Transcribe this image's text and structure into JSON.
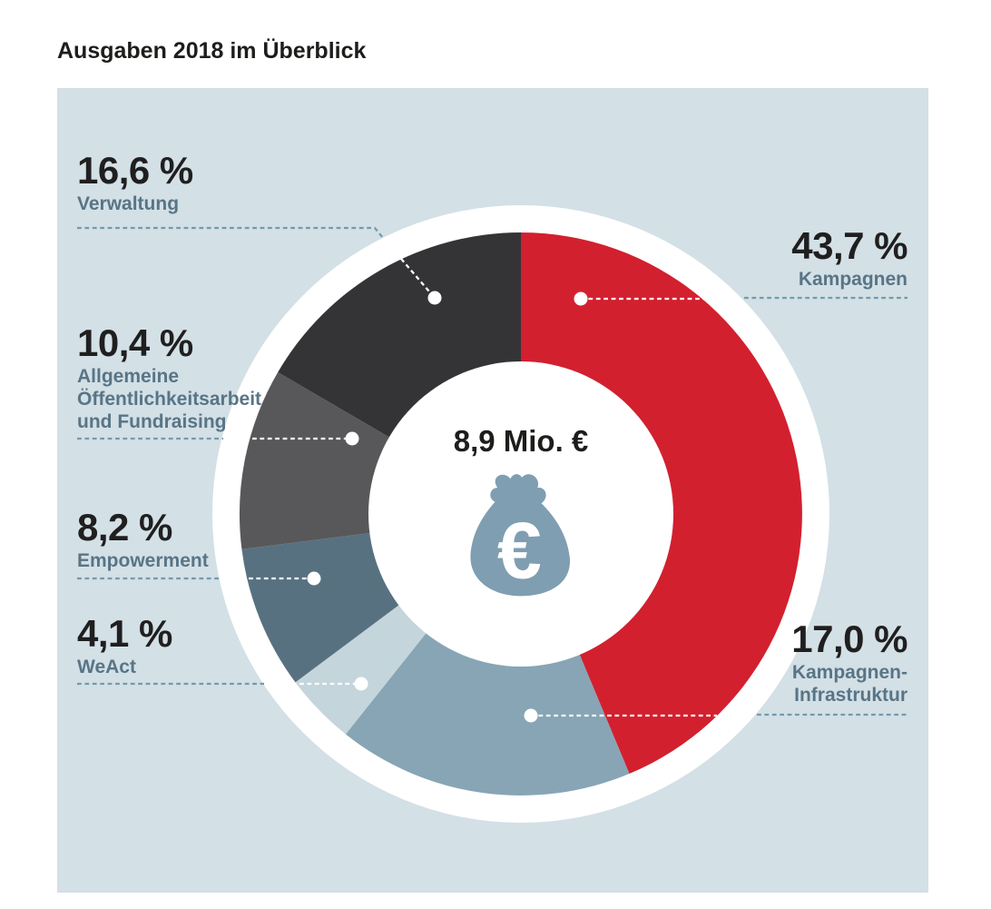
{
  "title": "Ausgaben 2018 im Überblick",
  "center": {
    "total_label": "8,9 Mio. €",
    "icon": "money-bag-euro-icon",
    "euro_glyph": "€"
  },
  "colors": {
    "page_background": "#ffffff",
    "panel_background": "#d3e0e6",
    "ring_white": "#ffffff",
    "leader_on_background": "#749aab",
    "leader_on_segment": "#ffffff",
    "dot": "#ffffff",
    "percent_text": "#201f1f",
    "sublabel_text": "#587586",
    "title_text": "#1d1d1b",
    "money_bag": "#7f9eb1"
  },
  "chart_data": {
    "type": "pie",
    "donut": true,
    "title": "Ausgaben 2018 im Überblick",
    "center_total": "8,9 Mio. €",
    "units": "percent",
    "start_angle": "12-o'clock, clockwise",
    "categories": [
      "Kampagnen",
      "Kampagnen-Infrastruktur",
      "WeAct",
      "Empowerment",
      "Allgemeine Öffentlichkeitsarbeit und Fundraising",
      "Verwaltung"
    ],
    "values": [
      43.7,
      17.0,
      4.1,
      8.2,
      10.4,
      16.6
    ],
    "segments": [
      {
        "key": "kampagnen",
        "label": "Kampagnen",
        "value": 43.7,
        "display": "43,7 %",
        "color": "#d2202f"
      },
      {
        "key": "infrastruktur",
        "label": "Kampagnen-Infrastruktur",
        "value": 17.0,
        "display": "17,0 %",
        "color": "#87a5b5"
      },
      {
        "key": "weact",
        "label": "WeAct",
        "value": 4.1,
        "display": "4,1 %",
        "color": "#c4d5dc"
      },
      {
        "key": "empowerment",
        "label": "Empowerment",
        "value": 8.2,
        "display": "8,2 %",
        "color": "#587181"
      },
      {
        "key": "oeffentlichkeitsarbeit",
        "label": "Allgemeine Öffentlichkeitsarbeit und Fundraising",
        "value": 10.4,
        "display": "10,4 %",
        "color": "#58585a"
      },
      {
        "key": "verwaltung",
        "label": "Verwaltung",
        "value": 16.6,
        "display": "16,6 %",
        "color": "#343437"
      }
    ]
  },
  "callouts": {
    "verwaltung": {
      "pct": "16,6 %",
      "lines": [
        "Verwaltung"
      ]
    },
    "oeffentlichkeitsarbeit": {
      "pct": "10,4 %",
      "lines": [
        "Allgemeine",
        "Öffentlichkeitsarbeit",
        "und Fundraising"
      ]
    },
    "empowerment": {
      "pct": "8,2 %",
      "lines": [
        "Empowerment"
      ]
    },
    "weact": {
      "pct": "4,1 %",
      "lines": [
        "WeAct"
      ]
    },
    "kampagnen": {
      "pct": "43,7 %",
      "lines": [
        "Kampagnen"
      ]
    },
    "infrastruktur": {
      "pct": "17,0 %",
      "lines": [
        "Kampagnen-",
        "Infrastruktur"
      ]
    }
  }
}
